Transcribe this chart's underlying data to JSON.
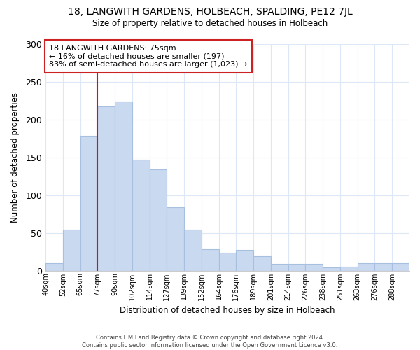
{
  "title": "18, LANGWITH GARDENS, HOLBEACH, SPALDING, PE12 7JL",
  "subtitle": "Size of property relative to detached houses in Holbeach",
  "xlabel": "Distribution of detached houses by size in Holbeach",
  "ylabel": "Number of detached properties",
  "bar_labels": [
    "40sqm",
    "52sqm",
    "65sqm",
    "77sqm",
    "90sqm",
    "102sqm",
    "114sqm",
    "127sqm",
    "139sqm",
    "152sqm",
    "164sqm",
    "176sqm",
    "189sqm",
    "201sqm",
    "214sqm",
    "226sqm",
    "238sqm",
    "251sqm",
    "263sqm",
    "276sqm",
    "288sqm"
  ],
  "bar_heights": [
    10,
    54,
    178,
    217,
    224,
    147,
    134,
    84,
    54,
    28,
    24,
    27,
    19,
    9,
    9,
    9,
    4,
    5,
    10,
    10,
    10
  ],
  "bar_color": "#c9d9f0",
  "bar_edge_color": "#a8c0e0",
  "annotation_line1": "18 LANGWITH GARDENS: 75sqm",
  "annotation_line2": "← 16% of detached houses are smaller (197)",
  "annotation_line3": "83% of semi-detached houses are larger (1,023) →",
  "ylim": [
    0,
    300
  ],
  "yticks": [
    0,
    50,
    100,
    150,
    200,
    250,
    300
  ],
  "footer_line1": "Contains HM Land Registry data © Crown copyright and database right 2024.",
  "footer_line2": "Contains public sector information licensed under the Open Government Licence v3.0.",
  "background_color": "#ffffff",
  "grid_color": "#dce8f5"
}
